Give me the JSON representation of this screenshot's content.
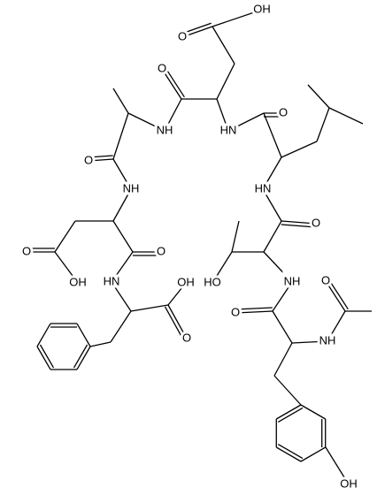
{
  "labels": [
    "OH",
    "O",
    "O",
    "NH",
    "HN",
    "O",
    "O",
    "NH",
    "HN",
    "O",
    "O",
    "OH",
    "O",
    "HN",
    "OH",
    "HO",
    "NH",
    "O",
    "O",
    "O",
    "NH",
    "OH"
  ]
}
